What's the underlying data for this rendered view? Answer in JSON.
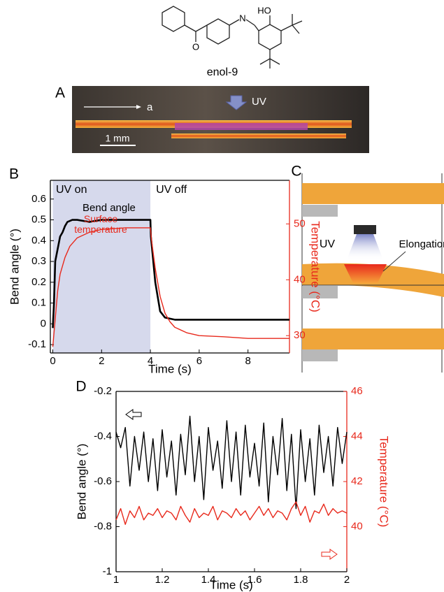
{
  "figure": {
    "structure_label": "enol-9",
    "structure_atoms": [
      "O",
      "N",
      "HO"
    ],
    "photo": {
      "panel": "A",
      "axis_label": "a",
      "uv_label": "UV",
      "scale_bar": "1 mm"
    },
    "diagram": {
      "panel": "C",
      "uv_label": "UV",
      "annotation": "Elongation"
    }
  },
  "chart_data": [
    {
      "panel": "B",
      "type": "line",
      "xlabel": "Time (s)",
      "ylabel": "Bend angle (°)",
      "y2label": "Temperature (°C)",
      "xlim": [
        -0.1,
        9.7
      ],
      "xticks": [
        0,
        2,
        4,
        6,
        8
      ],
      "ylim": [
        -0.14,
        0.69
      ],
      "yticks": [
        -0.1,
        0,
        0.1,
        0.2,
        0.3,
        0.4,
        0.5,
        0.6
      ],
      "y2lim": [
        26.9,
        57.8
      ],
      "y2ticks": [
        30,
        40,
        50
      ],
      "y2color": "#e8291c",
      "uv_on_span": [
        0,
        4.0
      ],
      "shade_color": "#d6d9ec",
      "annotations": [
        "UV on",
        "UV off"
      ],
      "series": [
        {
          "name": "Bend angle",
          "color": "#000000",
          "x": [
            0,
            0.05,
            0.1,
            0.2,
            0.3,
            0.4,
            0.5,
            0.6,
            0.8,
            1.0,
            1.5,
            2.0,
            3.0,
            4.0,
            4.02,
            4.2,
            4.4,
            4.6,
            5.0,
            6,
            7,
            8,
            9,
            9.7
          ],
          "values": [
            -0.02,
            0.1,
            0.3,
            0.36,
            0.42,
            0.44,
            0.47,
            0.49,
            0.5,
            0.5,
            0.49,
            0.5,
            0.5,
            0.5,
            0.42,
            0.2,
            0.06,
            0.03,
            0.02,
            0.02,
            0.02,
            0.02,
            0.02,
            0.02
          ]
        },
        {
          "name": "Surface temperature",
          "color": "#e8291c",
          "axis": "y2",
          "x": [
            0,
            0.1,
            0.2,
            0.3,
            0.5,
            0.7,
            1.0,
            1.5,
            2,
            3,
            4,
            4.05,
            4.2,
            4.4,
            4.6,
            4.8,
            5.0,
            5.5,
            6,
            7,
            8,
            9,
            9.7
          ],
          "values": [
            28,
            33,
            38,
            41,
            44,
            46,
            47.5,
            48.5,
            49,
            49.3,
            49.3,
            47,
            42,
            37,
            34,
            32.5,
            31.5,
            30.5,
            30,
            29.8,
            29.5,
            29.5,
            29.5
          ]
        }
      ]
    },
    {
      "panel": "D",
      "type": "line",
      "xlabel": "Time (s)",
      "ylabel": "Bend angle (°)",
      "y2label": "Temperature (°C)",
      "x": [
        1,
        1.02,
        1.04,
        1.06,
        1.08,
        1.1,
        1.12,
        1.14,
        1.16,
        1.18,
        1.2,
        1.22,
        1.24,
        1.26,
        1.28,
        1.3,
        1.32,
        1.34,
        1.36,
        1.38,
        1.4,
        1.42,
        1.44,
        1.46,
        1.48,
        1.5,
        1.52,
        1.54,
        1.56,
        1.58,
        1.6,
        1.62,
        1.64,
        1.66,
        1.68,
        1.7,
        1.72,
        1.74,
        1.76,
        1.78,
        1.8,
        1.82,
        1.84,
        1.86,
        1.88,
        1.9,
        1.92,
        1.94,
        1.96,
        1.98,
        2
      ],
      "xlim": [
        1,
        2
      ],
      "xticks": [
        1,
        1.2,
        1.4,
        1.6,
        1.8,
        2
      ],
      "ylim": [
        -1,
        -0.2
      ],
      "yticks": [
        -1,
        -0.8,
        -0.6,
        -0.4,
        -0.2
      ],
      "y2lim": [
        38,
        46
      ],
      "y2ticks": [
        40,
        42,
        44,
        46
      ],
      "y2color": "#e8291c",
      "series": [
        {
          "color": "#000000",
          "values": [
            -0.38,
            -0.45,
            -0.36,
            -0.62,
            -0.4,
            -0.55,
            -0.38,
            -0.6,
            -0.41,
            -0.64,
            -0.37,
            -0.58,
            -0.42,
            -0.66,
            -0.39,
            -0.57,
            -0.31,
            -0.6,
            -0.4,
            -0.68,
            -0.36,
            -0.55,
            -0.42,
            -0.63,
            -0.33,
            -0.6,
            -0.38,
            -0.66,
            -0.35,
            -0.58,
            -0.43,
            -0.62,
            -0.34,
            -0.69,
            -0.4,
            -0.57,
            -0.32,
            -0.64,
            -0.39,
            -0.72,
            -0.37,
            -0.6,
            -0.41,
            -0.66,
            -0.35,
            -0.56,
            -0.4,
            -0.62,
            -0.36,
            -0.52,
            -0.38
          ]
        },
        {
          "color": "#e8291c",
          "axis": "y2",
          "values": [
            40.3,
            40.8,
            40.1,
            40.7,
            40.4,
            40.9,
            40.3,
            40.6,
            40.5,
            40.8,
            40.4,
            40.7,
            40.6,
            40.3,
            40.9,
            40.5,
            40.2,
            40.8,
            40.4,
            40.6,
            40.5,
            40.9,
            40.3,
            40.7,
            40.6,
            40.4,
            40.8,
            40.5,
            40.7,
            40.3,
            40.6,
            40.9,
            40.5,
            40.8,
            40.4,
            40.7,
            40.6,
            40.3,
            40.8,
            41.1,
            40.5,
            40.9,
            40.2,
            40.7,
            40.6,
            41.0,
            40.5,
            40.8,
            40.6,
            40.7,
            40.6
          ]
        }
      ]
    }
  ]
}
